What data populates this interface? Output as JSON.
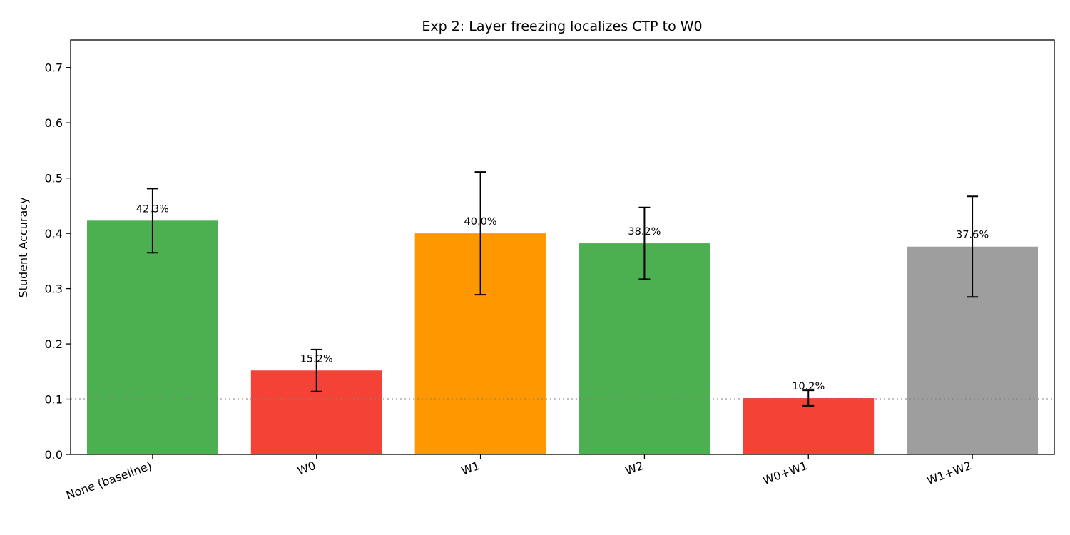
{
  "chart_data": {
    "type": "bar",
    "title": "Exp 2: Layer freezing localizes CTP to W0",
    "xlabel": "",
    "ylabel": "Student Accuracy",
    "categories": [
      "None (baseline)",
      "W0",
      "W1",
      "W2",
      "W0+W1",
      "W1+W2"
    ],
    "values": [
      0.423,
      0.152,
      0.4,
      0.382,
      0.102,
      0.376
    ],
    "errors": [
      0.058,
      0.038,
      0.111,
      0.065,
      0.014,
      0.091
    ],
    "data_labels": [
      "42.3%",
      "15.2%",
      "40.0%",
      "38.2%",
      "10.2%",
      "37.6%"
    ],
    "colors": [
      "#4caf50",
      "#f44336",
      "#ff9800",
      "#4caf50",
      "#f44336",
      "#9e9e9e"
    ],
    "ylim": [
      0,
      0.75
    ],
    "yticks": [
      0.0,
      0.1,
      0.2,
      0.3,
      0.4,
      0.5,
      0.6,
      0.7
    ],
    "ytick_labels": [
      "0.0",
      "0.1",
      "0.2",
      "0.3",
      "0.4",
      "0.5",
      "0.6",
      "0.7"
    ],
    "reference_line": {
      "y": 0.1,
      "style": "dotted",
      "color": "#808080"
    },
    "grid": false,
    "legend": "none"
  }
}
